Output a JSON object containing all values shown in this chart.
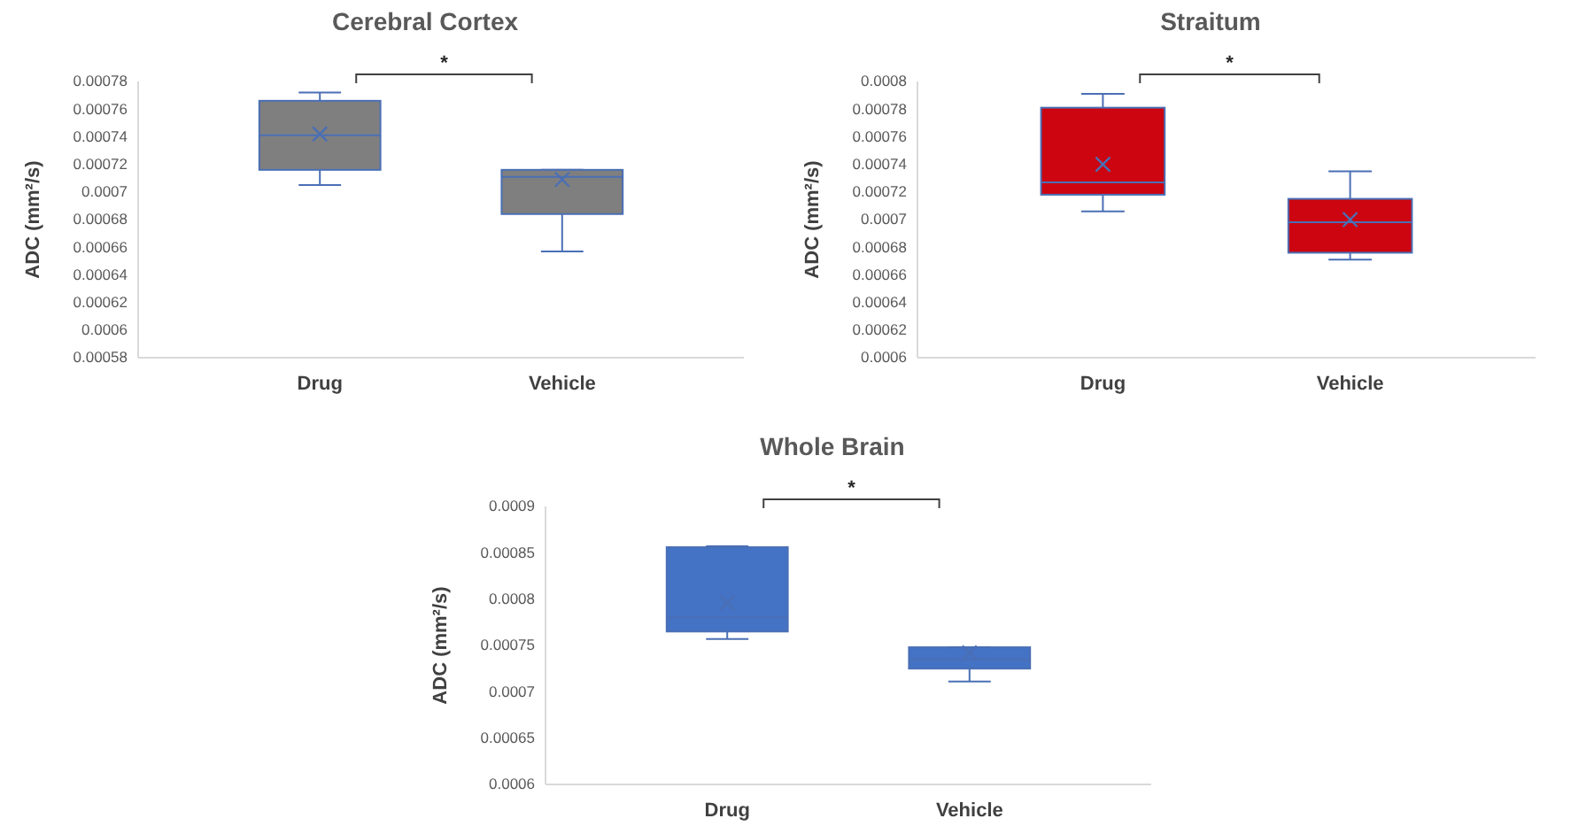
{
  "chart_data": [
    {
      "type": "box",
      "title": "Cerebral Cortex",
      "ylabel": "ADC (mm²/s)",
      "categories": [
        "Drug",
        "Vehicle"
      ],
      "color": "#7f7f7f",
      "ylim": [
        0.00058,
        0.00078
      ],
      "yticks": [
        0.00058,
        0.0006,
        0.00062,
        0.00064,
        0.00066,
        0.00068,
        0.0007,
        0.00072,
        0.00074,
        0.00076,
        0.00078
      ],
      "annotations": [
        "*"
      ],
      "boxes": [
        {
          "low": 0.000705,
          "q1": 0.000716,
          "median": 0.000741,
          "q3": 0.000766,
          "high": 0.000772,
          "mean": 0.000742
        },
        {
          "low": 0.000657,
          "q1": 0.000684,
          "median": 0.000711,
          "q3": 0.000716,
          "high": 0.000716,
          "mean": 0.000709
        }
      ]
    },
    {
      "type": "box",
      "title": "Straitum",
      "ylabel": "ADC (mm²/s)",
      "categories": [
        "Drug",
        "Vehicle"
      ],
      "color": "#cc0510",
      "ylim": [
        0.0006,
        0.0008
      ],
      "yticks": [
        0.0006,
        0.00062,
        0.00064,
        0.00066,
        0.00068,
        0.0007,
        0.00072,
        0.00074,
        0.00076,
        0.00078,
        0.0008
      ],
      "annotations": [
        "*"
      ],
      "boxes": [
        {
          "low": 0.000706,
          "q1": 0.000718,
          "median": 0.000727,
          "q3": 0.000781,
          "high": 0.000791,
          "mean": 0.00074
        },
        {
          "low": 0.000671,
          "q1": 0.000676,
          "median": 0.000698,
          "q3": 0.000715,
          "high": 0.000735,
          "mean": 0.0007
        }
      ]
    },
    {
      "type": "box",
      "title": "Whole Brain",
      "ylabel": "ADC (mm²/s)",
      "categories": [
        "Drug",
        "Vehicle"
      ],
      "color": "#4472c4",
      "ylim": [
        0.0006,
        0.0009
      ],
      "yticks": [
        0.0006,
        0.00065,
        0.0007,
        0.00075,
        0.0008,
        0.00085,
        0.0009
      ],
      "annotations": [
        "*"
      ],
      "boxes": [
        {
          "low": 0.000757,
          "q1": 0.000765,
          "median": 0.00078,
          "q3": 0.000856,
          "high": 0.000857,
          "mean": 0.000796
        },
        {
          "low": 0.000711,
          "q1": 0.000725,
          "median": 0.000735,
          "q3": 0.000748,
          "high": 0.000748,
          "mean": 0.000742
        }
      ]
    }
  ]
}
